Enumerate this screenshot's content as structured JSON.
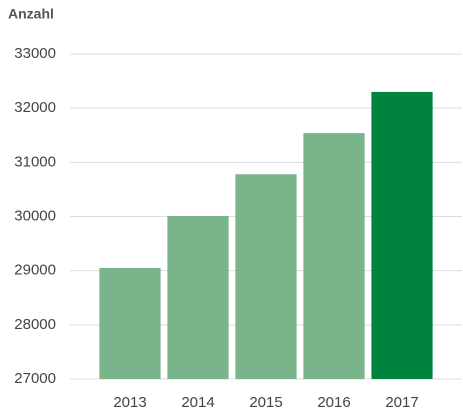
{
  "chart_data": {
    "type": "bar",
    "title": "Anzahl",
    "categories": [
      "2013",
      "2014",
      "2015",
      "2016",
      "2017"
    ],
    "values": [
      29050,
      30010,
      30780,
      31540,
      32300
    ],
    "colors": [
      "#7ab48a",
      "#7ab48a",
      "#7ab48a",
      "#7ab48a",
      "#00843d"
    ],
    "ylim": [
      27000,
      33000
    ],
    "yticks": [
      27000,
      28000,
      29000,
      30000,
      31000,
      32000,
      33000
    ],
    "grid": true
  }
}
